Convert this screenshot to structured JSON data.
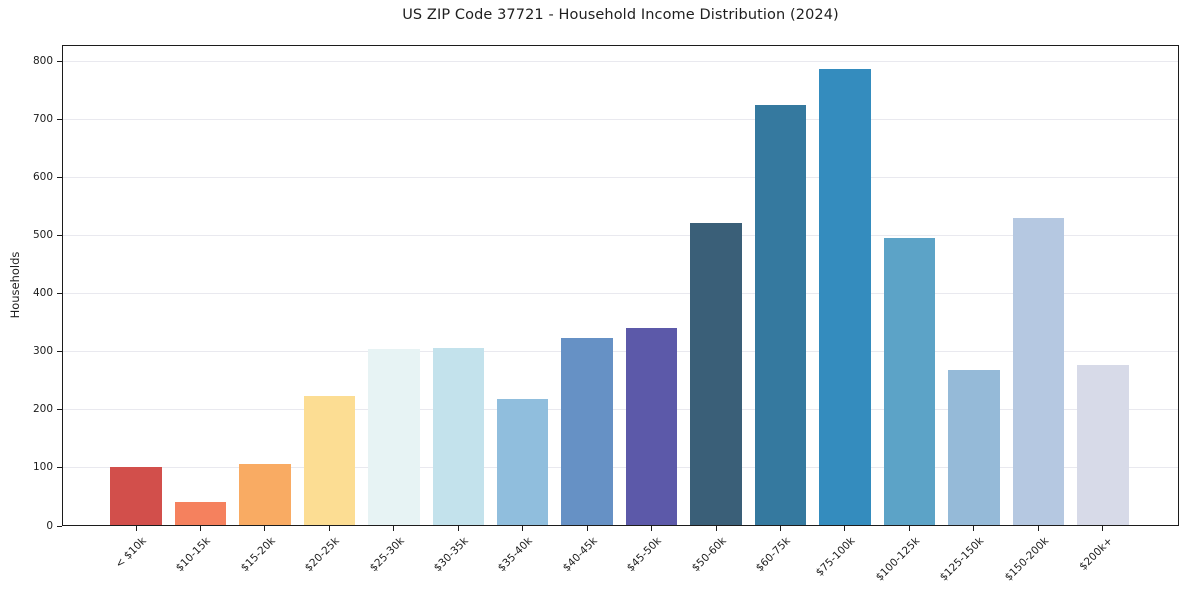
{
  "title": "US ZIP Code 37721 - Household Income Distribution (2024)",
  "chart_data": {
    "type": "bar",
    "title": "US ZIP Code 37721 - Household Income Distribution (2024)",
    "xlabel": "",
    "ylabel": "Households",
    "categories": [
      "< $10k",
      "$10-15k",
      "$15-20k",
      "$20-25k",
      "$25-30k",
      "$30-35k",
      "$35-40k",
      "$40-45k",
      "$45-50k",
      "$50-60k",
      "$60-75k",
      "$75-100k",
      "$100-125k",
      "$125-150k",
      "$150-200k",
      "$200k+"
    ],
    "values": [
      102,
      41,
      106,
      223,
      304,
      306,
      219,
      323,
      340,
      522,
      724,
      786,
      495,
      268,
      530,
      277
    ],
    "bar_colors": [
      "#d24f4b",
      "#f5815e",
      "#f9ab63",
      "#fcdd93",
      "#e7f3f4",
      "#c3e2ec",
      "#90bedd",
      "#6691c5",
      "#5c59a9",
      "#3a5f78",
      "#35799f",
      "#348cbe",
      "#5ca3c7",
      "#95bad8",
      "#b5c8e1",
      "#d7dae8"
    ],
    "ylim": [
      0,
      800
    ],
    "yticks": [
      0,
      100,
      200,
      300,
      400,
      500,
      600,
      700,
      800
    ],
    "grid": "horizontal",
    "gridline_color": "#e9e9ef",
    "axis_color": "#1c1c1c",
    "legend": "none"
  }
}
